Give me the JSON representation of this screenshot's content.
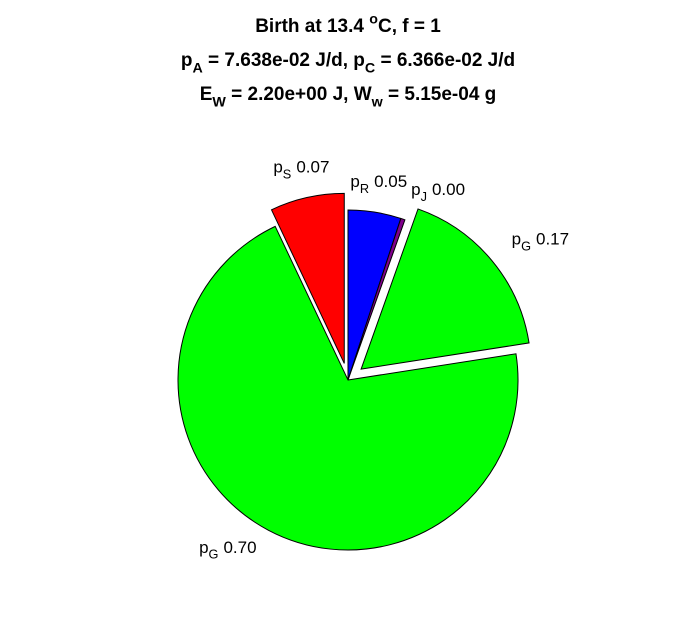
{
  "chart_data": {
    "type": "pie",
    "title_lines": [
      [
        {
          "text": "Birth at 13.4 "
        },
        {
          "sup": "o"
        },
        {
          "text": "C, f = 1"
        }
      ],
      [
        {
          "text": "p"
        },
        {
          "sub": "A"
        },
        {
          "text": " = 7.638e-02 J/d, p"
        },
        {
          "sub": "C"
        },
        {
          "text": " = 6.366e-02 J/d"
        }
      ],
      [
        {
          "text": "E"
        },
        {
          "sub": "W"
        },
        {
          "text": " = 2.20e+00 J, W"
        },
        {
          "sub": "w"
        },
        {
          "text": " = 5.15e-04 g"
        }
      ]
    ],
    "labels": [
      [
        {
          "text": "p"
        },
        {
          "sub": "R"
        }
      ],
      [
        {
          "text": "p"
        },
        {
          "sub": "J"
        }
      ],
      [
        {
          "text": "p"
        },
        {
          "sub": "G"
        }
      ],
      [
        {
          "text": "p"
        },
        {
          "sub": "G"
        }
      ],
      [
        {
          "text": "p"
        },
        {
          "sub": "S"
        }
      ]
    ],
    "values": [
      0.05,
      0.004,
      0.17,
      0.7,
      0.07
    ],
    "value_labels": [
      "0.05",
      "0.00",
      "0.17",
      "0.70",
      "0.07"
    ],
    "colors": [
      "#0000ff",
      "#80008c",
      "#00ff00",
      "#00ff00",
      "#ff0000"
    ],
    "explode": [
      false,
      false,
      true,
      false,
      true
    ]
  }
}
